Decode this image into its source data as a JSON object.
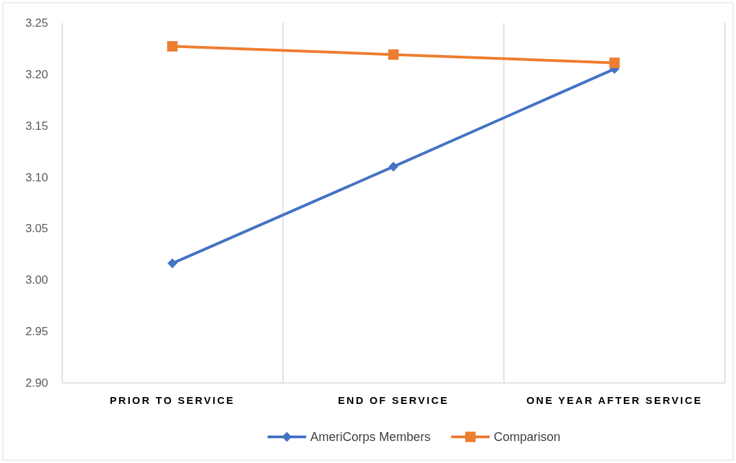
{
  "chart_data": {
    "type": "line",
    "categories": [
      "PRIOR TO SERVICE",
      "END OF SERVICE",
      "ONE YEAR AFTER SERVICE"
    ],
    "series": [
      {
        "name": "AmeriCorps Members",
        "color": "#4472c4",
        "marker": "diamond",
        "values": [
          3.016,
          3.11,
          3.205
        ]
      },
      {
        "name": "Comparison",
        "color": "#ed7d31",
        "marker": "square",
        "values": [
          3.227,
          3.219,
          3.211
        ]
      }
    ],
    "ylim": [
      2.9,
      3.25
    ],
    "yticks": [
      {
        "value": 2.9,
        "label": "2.90"
      },
      {
        "value": 2.95,
        "label": "2.95"
      },
      {
        "value": 3.0,
        "label": "3.00"
      },
      {
        "value": 3.05,
        "label": "3.05"
      },
      {
        "value": 3.1,
        "label": "3.10"
      },
      {
        "value": 3.15,
        "label": "3.15"
      },
      {
        "value": 3.2,
        "label": "3.20"
      },
      {
        "value": 3.25,
        "label": "3.25"
      }
    ],
    "grid": "x",
    "legend": "bottom",
    "line_style": "solid"
  }
}
